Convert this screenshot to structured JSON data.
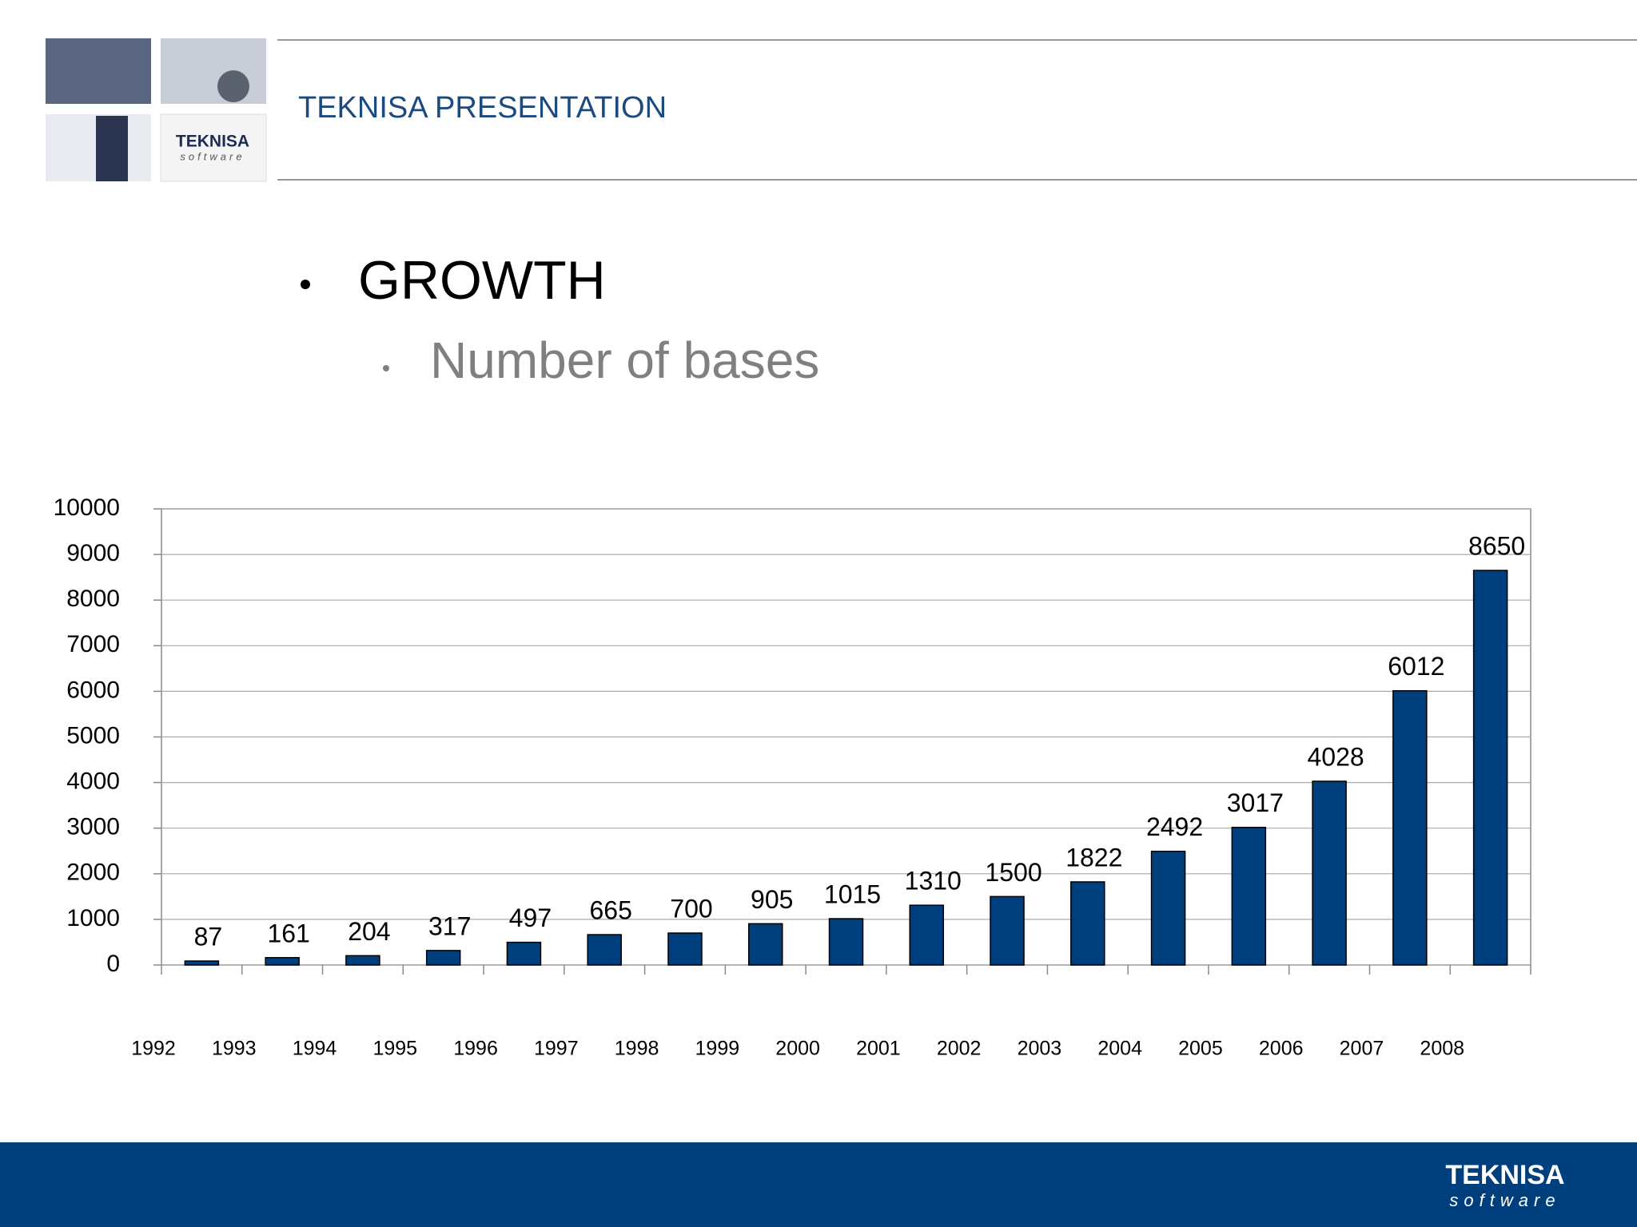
{
  "header": {
    "title": "TEKNISA PRESENTATION"
  },
  "bullets": [
    "GROWTH",
    "Number of bases"
  ],
  "logo": {
    "name": "TEKNISA",
    "tagline": "software"
  },
  "chart_data": {
    "type": "bar",
    "categories": [
      "1992",
      "1993",
      "1994",
      "1995",
      "1996",
      "1997",
      "1998",
      "1999",
      "2000",
      "2001",
      "2002",
      "2003",
      "2004",
      "2005",
      "2006",
      "2007",
      "2008"
    ],
    "values": [
      87,
      161,
      204,
      317,
      497,
      665,
      700,
      905,
      1015,
      1310,
      1500,
      1822,
      2492,
      3017,
      4028,
      6012,
      8650
    ],
    "color": "#003f7d",
    "ylim": [
      0,
      10000
    ],
    "yticks": [
      0,
      1000,
      2000,
      3000,
      4000,
      5000,
      6000,
      7000,
      8000,
      9000,
      10000
    ],
    "grid": true
  }
}
